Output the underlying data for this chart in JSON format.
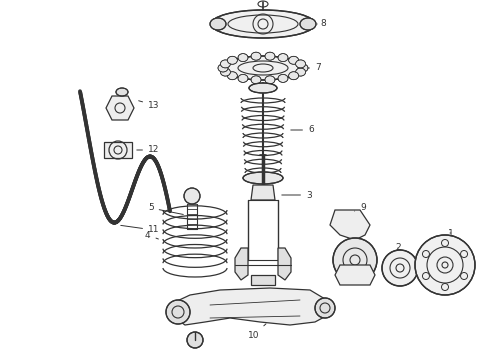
{
  "bg_color": "#ffffff",
  "lc": "#333333",
  "lw": 0.8,
  "fig_w": 4.9,
  "fig_h": 3.6,
  "dpi": 100,
  "xlim": [
    0,
    490
  ],
  "ylim": [
    0,
    360
  ]
}
